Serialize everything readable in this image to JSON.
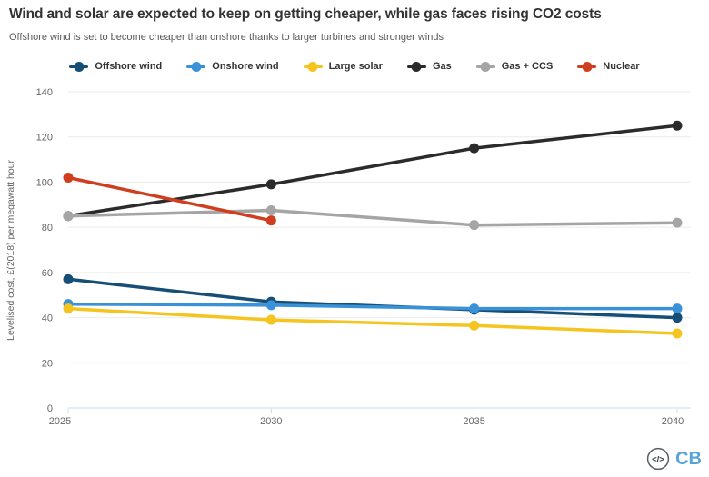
{
  "header": {
    "title": "Wind and solar are expected to keep on getting cheaper, while gas faces rising CO2 costs",
    "subtitle": "Offshore wind is set to become cheaper than onshore thanks to larger turbines and stronger winds"
  },
  "footer": {
    "logo_code": "</>",
    "logo_cb": "CB"
  },
  "colors": {
    "title": "#333333",
    "subtitle": "#595959",
    "tick_label": "#666666",
    "grid_line": "#ebebeb",
    "axis_line": "#ccdbe8",
    "cb_blue": "#58a3da"
  },
  "chart_data": {
    "type": "line",
    "title": "Wind and solar are expected to keep on getting cheaper, while gas faces rising CO2 costs",
    "subtitle": "Offshore wind is set to become cheaper than onshore thanks to larger turbines and stronger winds",
    "x": [
      2025,
      2030,
      2035,
      2040
    ],
    "x_tick_labels": [
      "2025",
      "2030",
      "2035",
      "2040"
    ],
    "xlabel": "",
    "ylabel": "Levelised cost, £(2018) per megawatt hour",
    "ylim": [
      0,
      140
    ],
    "y_tick_step": 20,
    "y_tick_labels": [
      "0",
      "20",
      "40",
      "60",
      "80",
      "100",
      "120",
      "140"
    ],
    "grid": true,
    "legend_position": "top",
    "series": [
      {
        "name": "Offshore wind",
        "color": "#174e75",
        "values": [
          57,
          47,
          43.5,
          40
        ]
      },
      {
        "name": "Onshore wind",
        "color": "#3992d8",
        "values": [
          46,
          45.5,
          44,
          44
        ]
      },
      {
        "name": "Large solar",
        "color": "#f6c41f",
        "values": [
          44,
          39,
          36.5,
          33
        ]
      },
      {
        "name": "Gas",
        "color": "#2b2b2b",
        "values": [
          85,
          99,
          115,
          125
        ]
      },
      {
        "name": "Gas + CCS",
        "color": "#a5a5a5",
        "values": [
          85,
          87.5,
          81,
          82
        ]
      },
      {
        "name": "Nuclear",
        "color": "#cf3f1f",
        "values": [
          102,
          83,
          null,
          null
        ]
      }
    ]
  }
}
